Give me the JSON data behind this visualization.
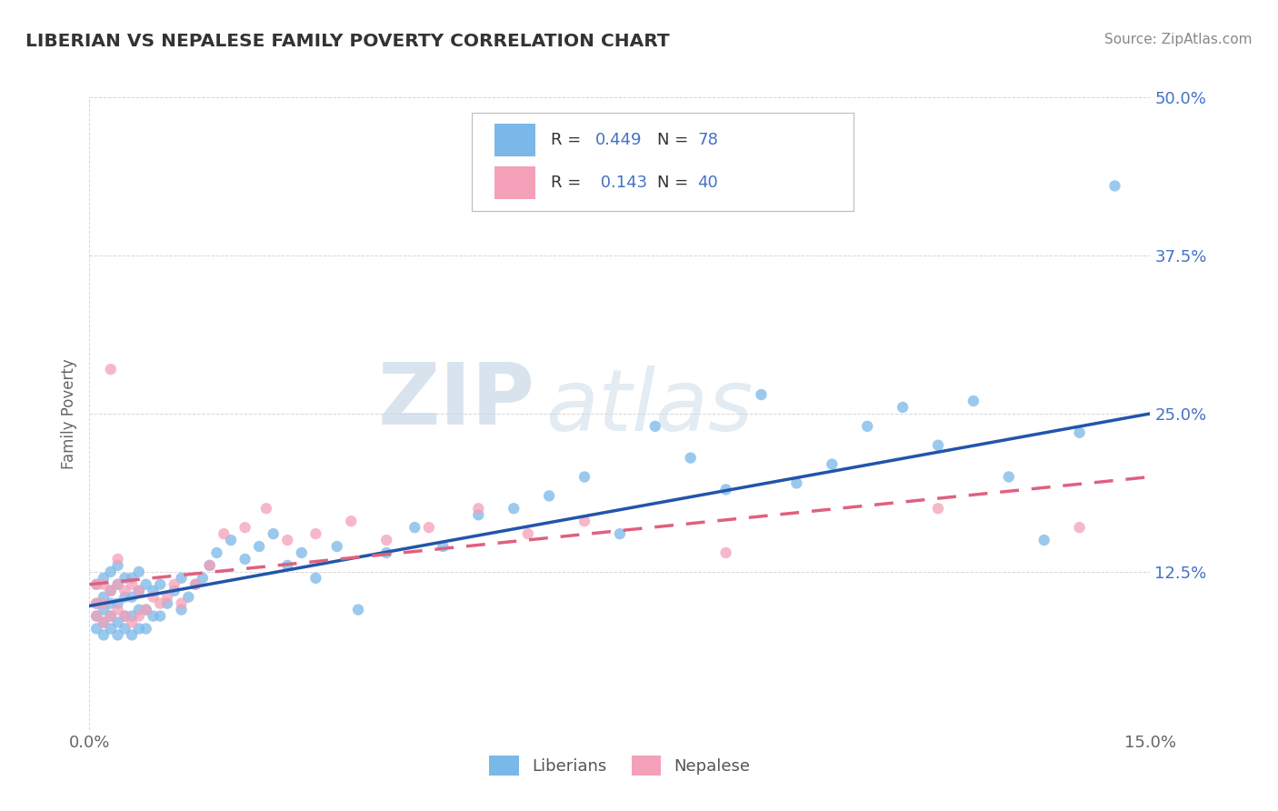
{
  "title": "LIBERIAN VS NEPALESE FAMILY POVERTY CORRELATION CHART",
  "source_text": "Source: ZipAtlas.com",
  "ylabel": "Family Poverty",
  "xlim": [
    0.0,
    0.15
  ],
  "ylim": [
    0.0,
    0.5
  ],
  "xtick_labels": [
    "0.0%",
    "15.0%"
  ],
  "ytick_labels": [
    "12.5%",
    "25.0%",
    "37.5%",
    "50.0%"
  ],
  "ytick_values": [
    0.125,
    0.25,
    0.375,
    0.5
  ],
  "xtick_values": [
    0.0,
    0.15
  ],
  "color_liberian": "#7ab8e8",
  "color_nepalese": "#f4a0b8",
  "color_liberian_line": "#2255aa",
  "color_nepalese_line": "#e06080",
  "background_color": "#ffffff",
  "grid_color": "#cccccc",
  "watermark_zip": "ZIP",
  "watermark_atlas": "atlas",
  "lib_line_x0": 0.0,
  "lib_line_y0": 0.098,
  "lib_line_x1": 0.15,
  "lib_line_y1": 0.25,
  "nep_line_x0": 0.0,
  "nep_line_y0": 0.115,
  "nep_line_x1": 0.15,
  "nep_line_y1": 0.2,
  "liberian_x": [
    0.001,
    0.001,
    0.001,
    0.001,
    0.002,
    0.002,
    0.002,
    0.002,
    0.002,
    0.003,
    0.003,
    0.003,
    0.003,
    0.003,
    0.004,
    0.004,
    0.004,
    0.004,
    0.004,
    0.005,
    0.005,
    0.005,
    0.005,
    0.006,
    0.006,
    0.006,
    0.006,
    0.007,
    0.007,
    0.007,
    0.007,
    0.008,
    0.008,
    0.008,
    0.009,
    0.009,
    0.01,
    0.01,
    0.011,
    0.012,
    0.013,
    0.013,
    0.014,
    0.015,
    0.016,
    0.017,
    0.018,
    0.02,
    0.022,
    0.024,
    0.026,
    0.028,
    0.03,
    0.032,
    0.035,
    0.038,
    0.042,
    0.046,
    0.05,
    0.055,
    0.06,
    0.065,
    0.07,
    0.075,
    0.08,
    0.085,
    0.09,
    0.095,
    0.1,
    0.105,
    0.11,
    0.115,
    0.12,
    0.125,
    0.13,
    0.135,
    0.14,
    0.145
  ],
  "liberian_y": [
    0.08,
    0.09,
    0.1,
    0.115,
    0.075,
    0.085,
    0.095,
    0.105,
    0.12,
    0.08,
    0.09,
    0.1,
    0.11,
    0.125,
    0.075,
    0.085,
    0.1,
    0.115,
    0.13,
    0.08,
    0.09,
    0.105,
    0.12,
    0.075,
    0.09,
    0.105,
    0.12,
    0.08,
    0.095,
    0.11,
    0.125,
    0.08,
    0.095,
    0.115,
    0.09,
    0.11,
    0.09,
    0.115,
    0.1,
    0.11,
    0.095,
    0.12,
    0.105,
    0.115,
    0.12,
    0.13,
    0.14,
    0.15,
    0.135,
    0.145,
    0.155,
    0.13,
    0.14,
    0.12,
    0.145,
    0.095,
    0.14,
    0.16,
    0.145,
    0.17,
    0.175,
    0.185,
    0.2,
    0.155,
    0.24,
    0.215,
    0.19,
    0.265,
    0.195,
    0.21,
    0.24,
    0.255,
    0.225,
    0.26,
    0.2,
    0.15,
    0.235,
    0.43
  ],
  "nepalese_x": [
    0.001,
    0.001,
    0.001,
    0.002,
    0.002,
    0.002,
    0.003,
    0.003,
    0.003,
    0.004,
    0.004,
    0.004,
    0.005,
    0.005,
    0.006,
    0.006,
    0.007,
    0.007,
    0.008,
    0.009,
    0.01,
    0.011,
    0.012,
    0.013,
    0.015,
    0.017,
    0.019,
    0.022,
    0.025,
    0.028,
    0.032,
    0.037,
    0.042,
    0.048,
    0.055,
    0.062,
    0.07,
    0.09,
    0.12,
    0.14
  ],
  "nepalese_y": [
    0.09,
    0.1,
    0.115,
    0.085,
    0.1,
    0.115,
    0.09,
    0.11,
    0.285,
    0.095,
    0.115,
    0.135,
    0.09,
    0.11,
    0.085,
    0.115,
    0.09,
    0.11,
    0.095,
    0.105,
    0.1,
    0.105,
    0.115,
    0.1,
    0.115,
    0.13,
    0.155,
    0.16,
    0.175,
    0.15,
    0.155,
    0.165,
    0.15,
    0.16,
    0.175,
    0.155,
    0.165,
    0.14,
    0.175,
    0.16
  ]
}
